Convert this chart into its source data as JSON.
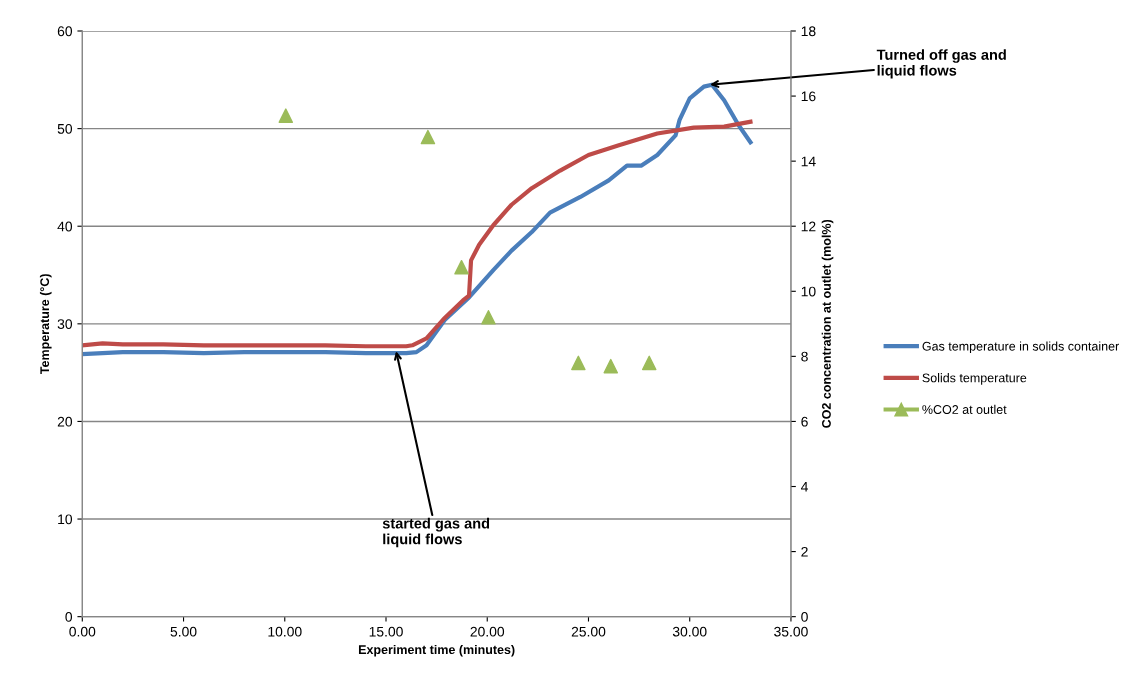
{
  "chart_data": {
    "type": "line",
    "xlabel": "Experiment time (minutes)",
    "ylabel": "Temperature (°C)",
    "y2label": "CO2 concentration at outlet (mol%)",
    "xlim": [
      0,
      35
    ],
    "xticks": [
      {
        "value": 0,
        "label": "0.00"
      },
      {
        "value": 5,
        "label": "5.00"
      },
      {
        "value": 10,
        "label": "10.00"
      },
      {
        "value": 15,
        "label": "15.00"
      },
      {
        "value": 20,
        "label": "20.00"
      },
      {
        "value": 25,
        "label": "25.00"
      },
      {
        "value": 30,
        "label": "30.00"
      },
      {
        "value": 35,
        "label": "35.00"
      }
    ],
    "ylim": [
      0,
      60
    ],
    "yticks": [
      0,
      10,
      20,
      30,
      40,
      50,
      60
    ],
    "y2lim": [
      0,
      18
    ],
    "y2ticks": [
      0,
      2,
      4,
      6,
      8,
      10,
      12,
      14,
      16,
      18
    ],
    "grid": "y",
    "legend": "right",
    "series": [
      {
        "name": "Gas temperature in solids container",
        "color": "#4a7ebb",
        "marker": "none",
        "x": [
          0,
          1,
          2,
          4,
          6,
          8,
          10,
          12,
          14,
          16,
          16.5,
          17,
          17.9,
          19.1,
          20.3,
          21.2,
          22.2,
          23.1,
          24.6,
          26.0,
          26.9,
          27.6,
          28.4,
          29.3,
          29.5,
          30.0,
          30.7,
          31.1,
          31.7,
          32.4,
          33.0
        ],
        "values": [
          26.9,
          27.0,
          27.1,
          27.1,
          27.0,
          27.1,
          27.1,
          27.1,
          27.0,
          27.0,
          27.1,
          27.8,
          30.4,
          32.7,
          35.5,
          37.5,
          39.4,
          41.4,
          43.0,
          44.7,
          46.2,
          46.2,
          47.3,
          49.3,
          50.9,
          53.1,
          54.3,
          54.5,
          52.9,
          50.4,
          48.6
        ]
      },
      {
        "name": "Solids temperature",
        "color": "#be4b48",
        "marker": "none",
        "x": [
          0,
          1,
          2,
          4,
          6,
          8,
          10,
          12,
          14,
          16,
          16.3,
          17,
          17.9,
          18.8,
          19.1,
          19.2,
          19.6,
          20.3,
          21.2,
          22.2,
          23.6,
          25.0,
          26.5,
          28.4,
          30.2,
          31.7,
          33.0
        ],
        "values": [
          27.8,
          28.0,
          27.9,
          27.9,
          27.8,
          27.8,
          27.8,
          27.8,
          27.7,
          27.7,
          27.8,
          28.5,
          30.6,
          32.4,
          32.9,
          36.5,
          38.1,
          40.1,
          42.2,
          43.9,
          45.7,
          47.3,
          48.3,
          49.5,
          50.1,
          50.2,
          50.7
        ]
      },
      {
        "name": "%CO2 at outlet",
        "color": "#9bbb59",
        "type": "scatter",
        "marker": "triangle",
        "axis": "y2",
        "x": [
          10.05,
          17.07,
          18.73,
          20.06,
          24.5,
          26.1,
          28.0
        ],
        "values": [
          15.4,
          14.74,
          10.74,
          9.2,
          7.8,
          7.7,
          7.8
        ]
      }
    ],
    "annotations": [
      {
        "text": "started gas and\nliquid flows",
        "x": 15.5,
        "y": 27.2
      },
      {
        "text": "Turned off gas and\nliquid flows",
        "x": 31.0,
        "y": 54.5
      }
    ]
  }
}
